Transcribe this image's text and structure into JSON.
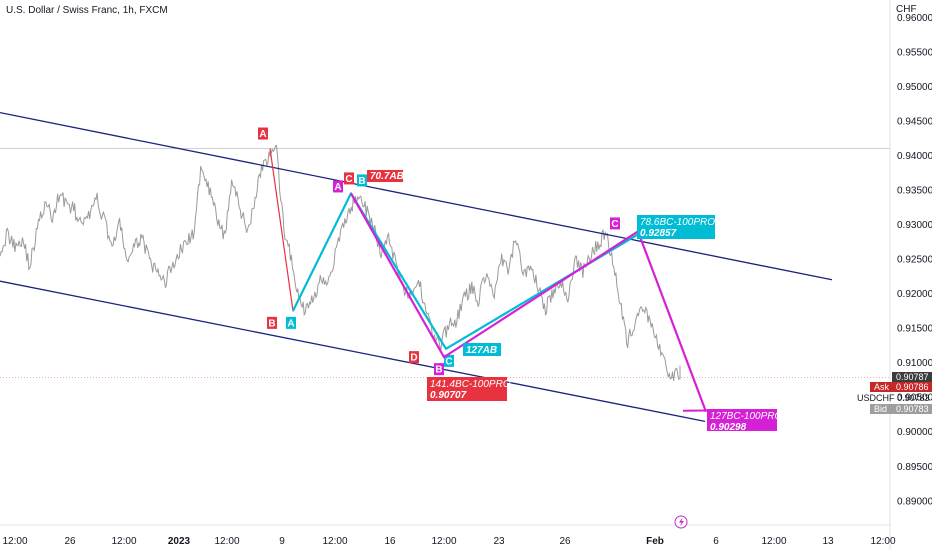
{
  "header": {
    "title": "U.S. Dollar / Swiss Franc, 1h, FXCM",
    "currency": "CHF"
  },
  "chart_data": {
    "type": "line",
    "ylim": [
      0.8865,
      0.9625
    ],
    "y_ticks": [
      0.96,
      0.955,
      0.95,
      0.945,
      0.94,
      0.935,
      0.93,
      0.925,
      0.92,
      0.915,
      0.91,
      0.905,
      0.9,
      0.895,
      0.89
    ],
    "y_tick_labels": [
      "0.96000",
      "0.95500",
      "0.95000",
      "0.94500",
      "0.94000",
      "0.93500",
      "0.93000",
      "0.92500",
      "0.92000",
      "0.91500",
      "0.91000",
      "0.90500",
      "0.90000",
      "0.89500",
      "0.89000"
    ],
    "x_ticks": [
      "12:00",
      "26",
      "12:00",
      "2023",
      "12:00",
      "9",
      "12:00",
      "16",
      "12:00",
      "23",
      "26",
      "Feb",
      "6",
      "12:00",
      "13",
      "12:00"
    ],
    "series": [
      {
        "values": [
          0.9265,
          0.9285,
          0.927,
          0.928,
          0.924,
          0.9295,
          0.933,
          0.931,
          0.9345,
          0.933,
          0.932,
          0.9295,
          0.9315,
          0.9335,
          0.9305,
          0.927,
          0.93,
          0.925,
          0.9265,
          0.9285,
          0.9245,
          0.923,
          0.9215,
          0.924,
          0.926,
          0.9275,
          0.929,
          0.939,
          0.935,
          0.931,
          0.928,
          0.936,
          0.933,
          0.929,
          0.933,
          0.9385,
          0.9395,
          0.9405,
          0.929,
          0.925,
          0.919,
          0.9175,
          0.9195,
          0.9225,
          0.922,
          0.926,
          0.93,
          0.9325,
          0.9345,
          0.932,
          0.9295,
          0.926,
          0.928,
          0.9245,
          0.921,
          0.919,
          0.922,
          0.918,
          0.914,
          0.9125,
          0.9155,
          0.916,
          0.919,
          0.921,
          0.919,
          0.923,
          0.9195,
          0.925,
          0.923,
          0.928,
          0.923,
          0.924,
          0.921,
          0.918,
          0.92,
          0.9215,
          0.9195,
          0.925,
          0.923,
          0.9255,
          0.927,
          0.929,
          0.925,
          0.919,
          0.913,
          0.916,
          0.9175,
          0.9165,
          0.9125,
          0.9095,
          0.908,
          0.9085
        ]
      }
    ],
    "channel": {
      "upper": [
        {
          "x": "start",
          "y": 0.9462
        },
        {
          "x": "end",
          "y": 0.922
        }
      ],
      "lower": [
        {
          "x": "start",
          "y": 0.9218
        },
        {
          "x": "end",
          "y": 0.9015
        }
      ]
    },
    "horizontal_lines": [
      0.941,
      0.90787
    ],
    "patterns": [
      {
        "name": "pink",
        "points": [
          {
            "label": "A",
            "y": 0.941
          },
          {
            "label": "B",
            "y": 0.9175
          },
          {
            "label": "C",
            "y": 0.9345
          },
          {
            "label": "D",
            "y": 0.9108
          }
        ]
      },
      {
        "name": "cyan",
        "points": [
          {
            "label": "A",
            "y": 0.9175
          },
          {
            "label": "B",
            "y": 0.9345
          },
          {
            "label": "C",
            "y": 0.912
          },
          {
            "label": "D",
            "y": 0.929
          }
        ]
      },
      {
        "name": "magenta",
        "points": [
          {
            "label": "A",
            "y": 0.9345
          },
          {
            "label": "B",
            "y": 0.9108
          },
          {
            "label": "C",
            "y": 0.929
          },
          {
            "label": "D",
            "y": 0.9029
          }
        ]
      }
    ],
    "annotations": [
      {
        "text": "70.7AB",
        "color": "#e8323f"
      },
      {
        "text": "127AB",
        "color": "#00bcd4"
      },
      {
        "text": "141.4BC-100PRO",
        "text2": "0.90707",
        "color": "#e8323f"
      },
      {
        "text": "78.6BC-100PRO",
        "text2": "0.92857",
        "color": "#00bcd4"
      },
      {
        "text": "127BC-100PRO",
        "text2": "0.90298",
        "color": "#d620d6"
      }
    ],
    "price_labels": [
      {
        "tag": "",
        "value": "0.90787",
        "color": "#3c3c3c"
      },
      {
        "tag": "Ask",
        "value": "0.90786",
        "color": "#c62828"
      },
      {
        "tag": "USDCHF",
        "value": "0.90783",
        "color": "#ffffff"
      },
      {
        "tag": "Bid",
        "value": "0.90783",
        "color": "#9e9e9e"
      }
    ]
  },
  "colors": {
    "price": "#9a9a9a",
    "channel": "#1a237e",
    "pink": "#e8323f",
    "cyan": "#00bcd4",
    "magenta": "#d620d6",
    "axis_text": "#131722"
  },
  "icons": {
    "bolt": "lightning-icon"
  }
}
